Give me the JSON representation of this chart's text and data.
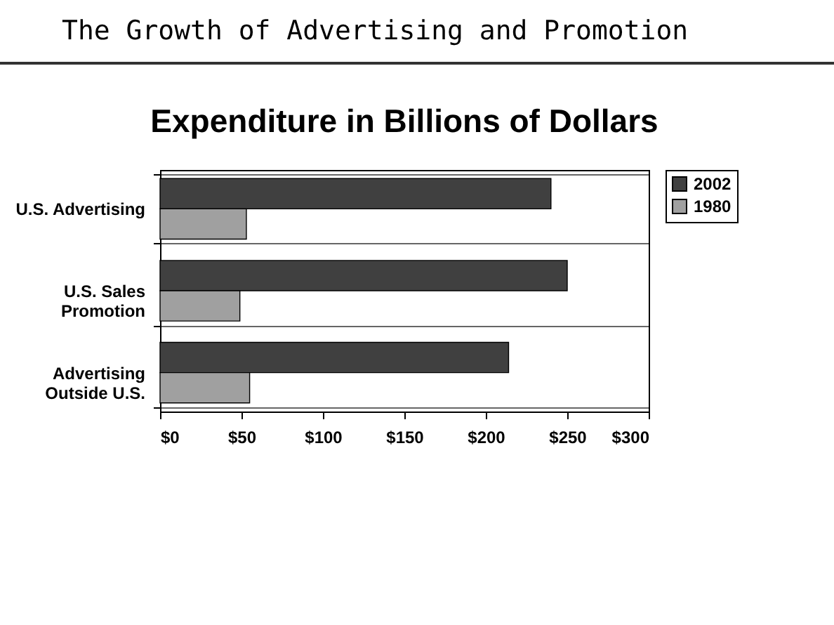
{
  "chart_data": {
    "type": "bar",
    "orientation": "horizontal",
    "title": "The Growth of Advertising and Promotion",
    "subtitle": "Expenditure in Billions of Dollars",
    "categories": [
      "U.S. Advertising",
      "U.S. Sales Promotion",
      "Advertising Outside U.S."
    ],
    "series": [
      {
        "name": "2002",
        "color": "#404040",
        "values": [
          240,
          250,
          214
        ]
      },
      {
        "name": "1980",
        "color": "#a0a0a0",
        "values": [
          53,
          49,
          55
        ]
      }
    ],
    "xlim": [
      0,
      300
    ],
    "xticks": [
      {
        "value": 0,
        "label": "$0"
      },
      {
        "value": 50,
        "label": "$50"
      },
      {
        "value": 100,
        "label": "$100"
      },
      {
        "value": 150,
        "label": "$150"
      },
      {
        "value": 200,
        "label": "$200"
      },
      {
        "value": 250,
        "label": "$250"
      },
      {
        "value": 300,
        "label": "$300"
      }
    ],
    "grid": "y",
    "legend": "right"
  }
}
